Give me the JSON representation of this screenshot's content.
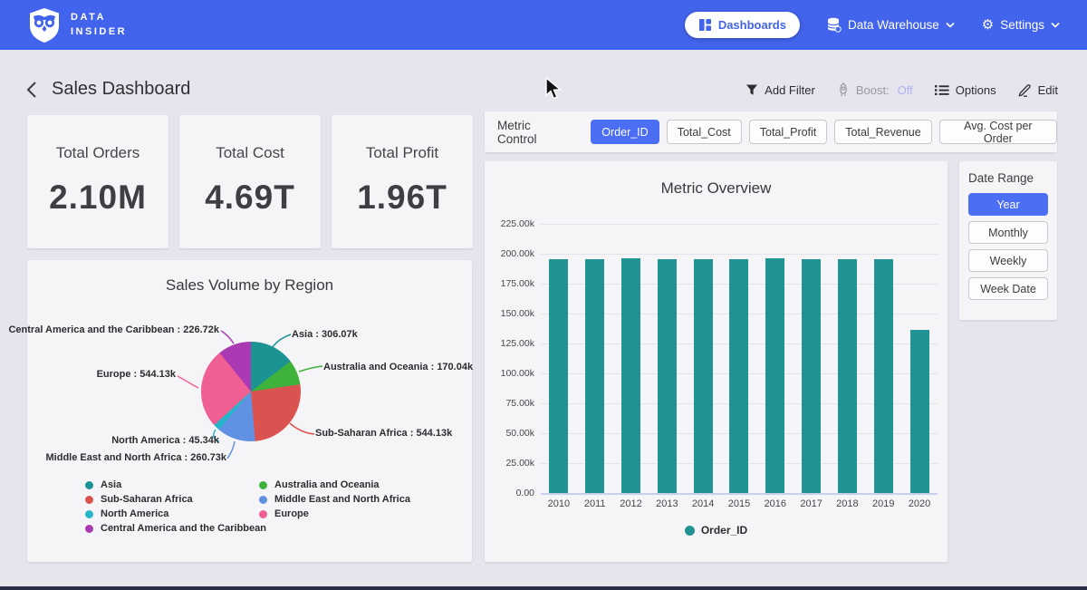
{
  "navbar": {
    "brand_line1": "DATA",
    "brand_line2": "INSIDER",
    "dashboards_label": "Dashboards",
    "data_warehouse_label": "Data Warehouse",
    "settings_label": "Settings"
  },
  "header": {
    "title": "Sales Dashboard",
    "add_filter_label": "Add Filter",
    "boost_label": "Boost:",
    "boost_state": "Off",
    "options_label": "Options",
    "edit_label": "Edit"
  },
  "kpis": [
    {
      "label": "Total Orders",
      "value": "2.10M"
    },
    {
      "label": "Total Cost",
      "value": "4.69T"
    },
    {
      "label": "Total Profit",
      "value": "1.96T"
    }
  ],
  "metric_control": {
    "label": "Metric Control",
    "buttons": [
      {
        "label": "Order_ID",
        "active": true
      },
      {
        "label": "Total_Cost",
        "active": false
      },
      {
        "label": "Total_Profit",
        "active": false
      },
      {
        "label": "Total_Revenue",
        "active": false
      },
      {
        "label": "Avg. Cost per Order",
        "active": false
      }
    ]
  },
  "date_range": {
    "label": "Date Range",
    "buttons": [
      {
        "label": "Year",
        "active": true
      },
      {
        "label": "Monthly",
        "active": false
      },
      {
        "label": "Weekly",
        "active": false
      },
      {
        "label": "Week Date",
        "active": false
      }
    ]
  },
  "colors": {
    "navbar_blue": "#4263eb",
    "accent_blue": "#4c6ef5",
    "boost_off": "#a9b4ef",
    "bar_teal": "#219393",
    "page_bg": "#e7e4ee",
    "panel_bg": "#f5f4f6"
  },
  "chart_data": [
    {
      "type": "pie",
      "title": "Sales Volume by Region",
      "unit": "k (thousands)",
      "slices": [
        {
          "label": "Asia",
          "value": 306.07,
          "display": "306.07k",
          "color": "#1b9393"
        },
        {
          "label": "Australia and Oceania",
          "value": 170.04,
          "display": "170.04k",
          "color": "#3fb23c"
        },
        {
          "label": "Sub-Saharan Africa",
          "value": 544.13,
          "display": "544.13k",
          "color": "#da5350"
        },
        {
          "label": "Middle East and North Africa",
          "value": 260.73,
          "display": "260.73k",
          "color": "#6191e2"
        },
        {
          "label": "North America",
          "value": 45.34,
          "display": "45.34k",
          "color": "#27b6c9"
        },
        {
          "label": "Europe",
          "value": 544.13,
          "display": "544.13k",
          "color": "#ef5f93"
        },
        {
          "label": "Central America and the Caribbean",
          "value": 226.72,
          "display": "226.72k",
          "color": "#aa39b4"
        }
      ],
      "legend_columns": [
        [
          0,
          2,
          4,
          6
        ],
        [
          1,
          3,
          5
        ]
      ],
      "legend_position": "bottom",
      "start_angle_deg": 0,
      "direction": "clockwise"
    },
    {
      "type": "bar",
      "title": "Metric Overview",
      "categories": [
        "2010",
        "2011",
        "2012",
        "2013",
        "2014",
        "2015",
        "2016",
        "2017",
        "2018",
        "2019",
        "2020"
      ],
      "series": [
        {
          "name": "Order_ID",
          "color": "#219393",
          "values": [
            195500,
            195300,
            196500,
            195200,
            195500,
            195300,
            196500,
            195200,
            195300,
            195500,
            136500
          ]
        }
      ],
      "y_ticks": [
        "225.00k",
        "200.00k",
        "175.00k",
        "150.00k",
        "125.00k",
        "100.00k",
        "75.00k",
        "50.00k",
        "25.00k",
        "0.00"
      ],
      "ylim": [
        0,
        225000
      ],
      "grid": true,
      "legend_position": "bottom"
    }
  ]
}
